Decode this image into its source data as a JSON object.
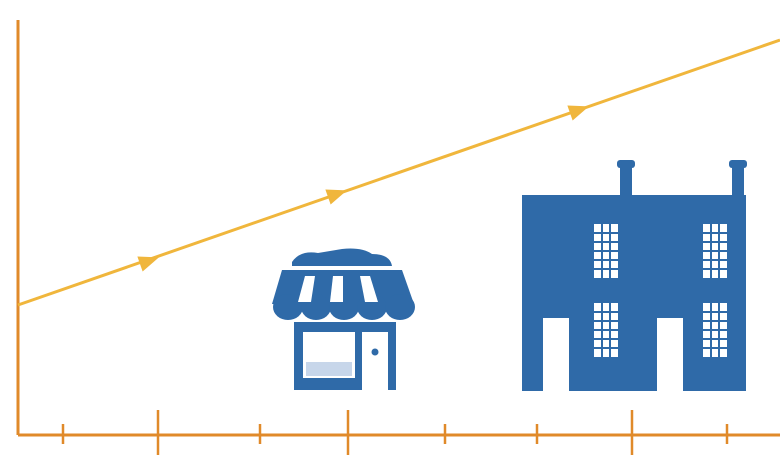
{
  "colors": {
    "axis": "#e08a2a",
    "trend_line": "#f0b63c",
    "building": "#2f6aa8",
    "window_light": "#ffffff",
    "window_pane": "#c7d6ea"
  },
  "icons": {
    "small": "storefront-icon",
    "large": "townhouse-building-icon"
  },
  "trend": {
    "direction": "increasing",
    "arrow_count": 3
  }
}
